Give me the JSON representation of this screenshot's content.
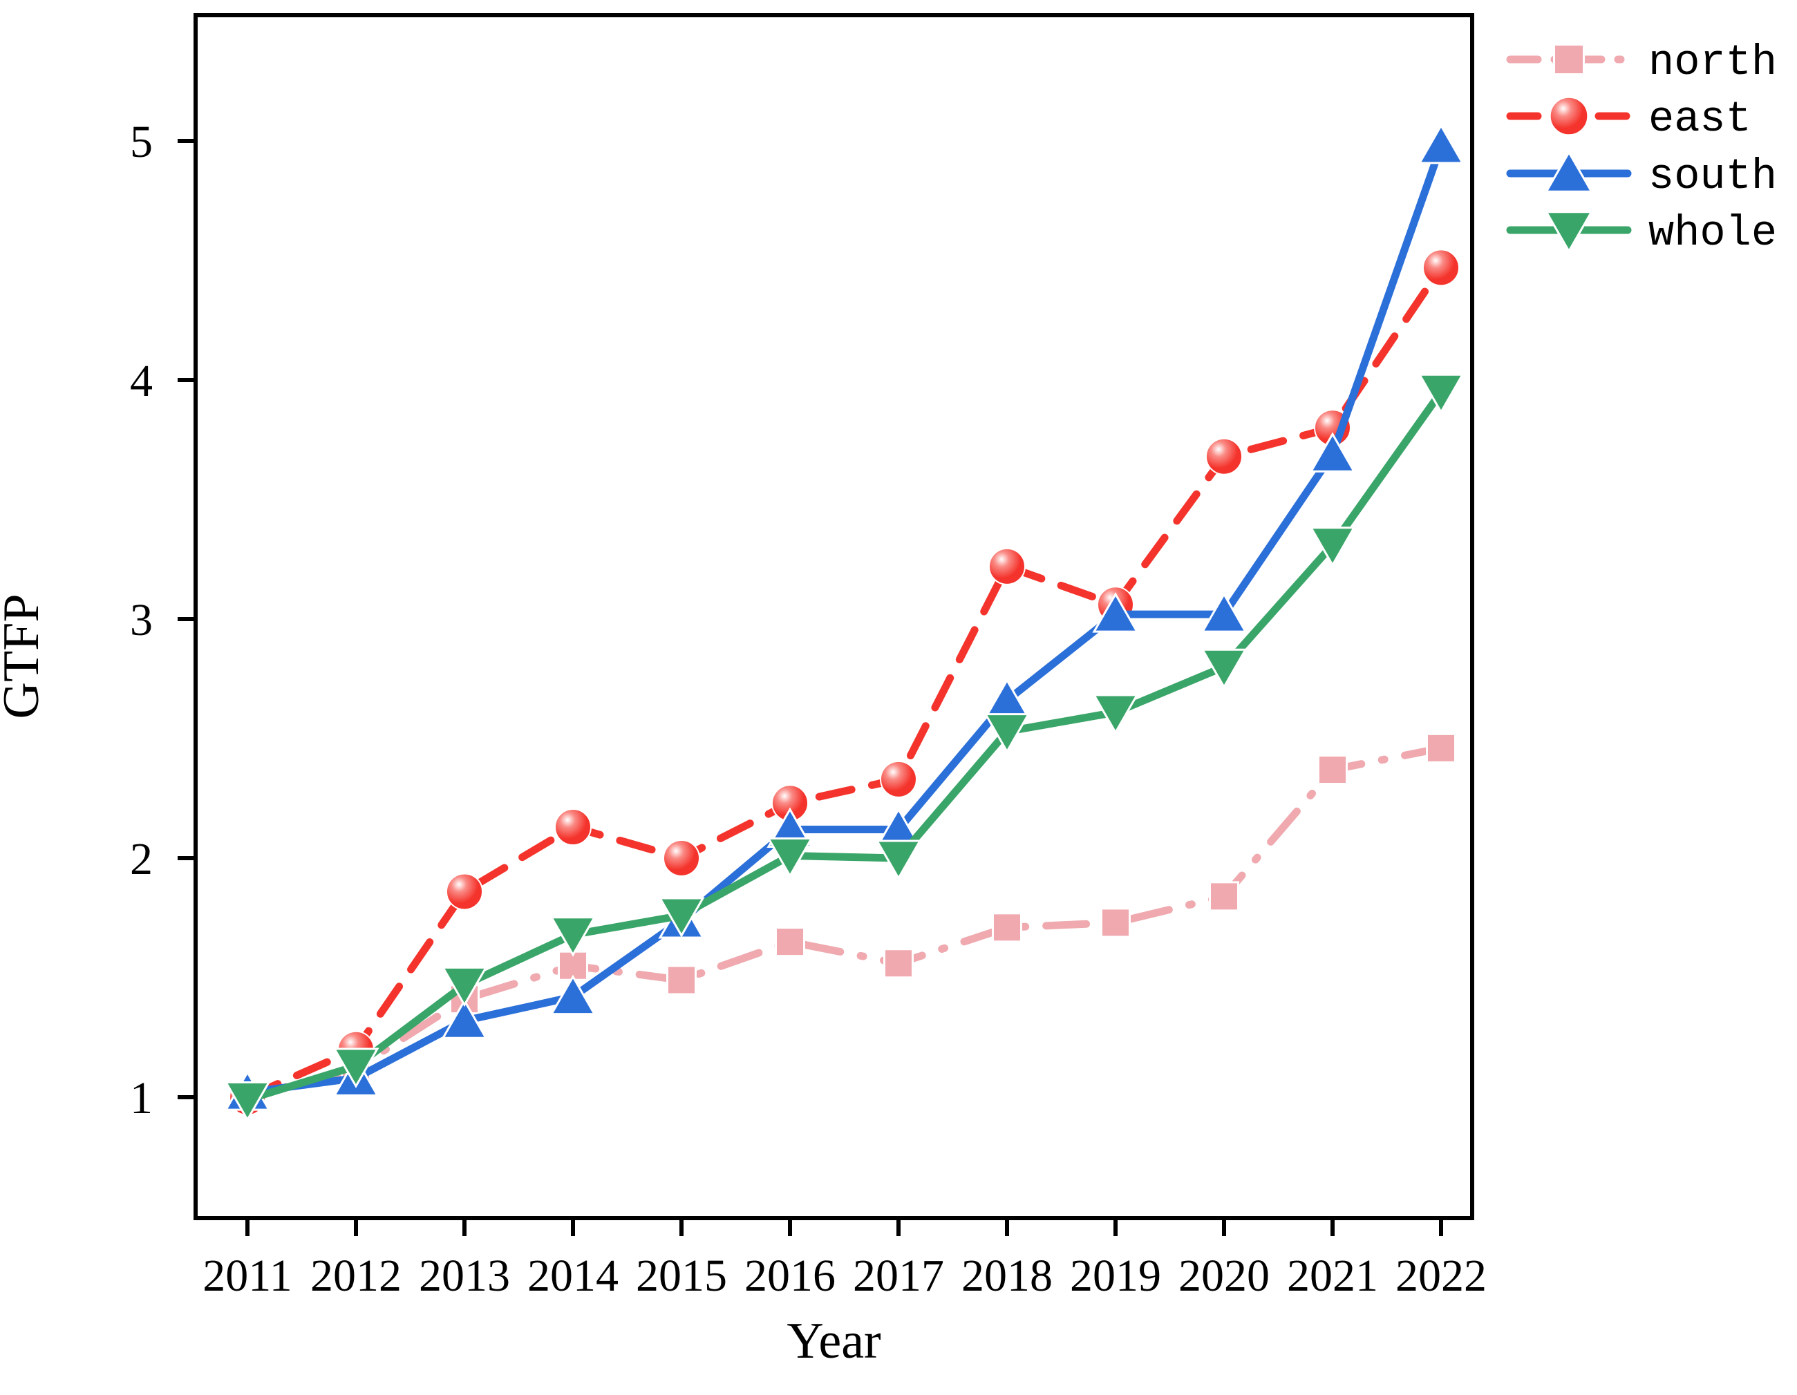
{
  "figure": {
    "background": "#ffffff",
    "border_color": "#000000"
  },
  "chart_data": {
    "type": "line",
    "title": "",
    "xlabel": "Year",
    "ylabel": "GTFP",
    "categories": [
      2011,
      2012,
      2013,
      2014,
      2015,
      2016,
      2017,
      2018,
      2019,
      2020,
      2021,
      2022
    ],
    "x_tick_labels": [
      "2011",
      "2012",
      "2013",
      "2014",
      "2015",
      "2016",
      "2017",
      "2018",
      "2019",
      "2020",
      "2021",
      "2022"
    ],
    "y_tick_labels": [
      "1",
      "2",
      "3",
      "4",
      "5"
    ],
    "yticks": [
      1,
      2,
      3,
      4,
      5
    ],
    "ylim": [
      0.49,
      5.53
    ],
    "grid": false,
    "legend_position": "outside-top-right",
    "series": [
      {
        "name": "north",
        "color": "#EFA9AF",
        "line_style": "dash-dot",
        "marker": "square",
        "values": [
          1.0,
          1.12,
          1.41,
          1.55,
          1.49,
          1.65,
          1.56,
          1.71,
          1.73,
          1.84,
          2.37,
          2.46
        ]
      },
      {
        "name": "east",
        "color": "#F4342C",
        "line_style": "dashed",
        "marker": "circle",
        "values": [
          1.0,
          1.2,
          1.86,
          2.13,
          2.0,
          2.23,
          2.33,
          3.22,
          3.06,
          3.68,
          3.8,
          4.47
        ]
      },
      {
        "name": "south",
        "color": "#2B6FD9",
        "line_style": "solid",
        "marker": "triangle-up",
        "values": [
          1.02,
          1.08,
          1.32,
          1.42,
          1.74,
          2.12,
          2.12,
          2.66,
          3.02,
          3.02,
          3.69,
          4.98
        ]
      },
      {
        "name": "whole",
        "color": "#3AA569",
        "line_style": "solid",
        "marker": "triangle-down",
        "values": [
          0.99,
          1.13,
          1.47,
          1.68,
          1.76,
          2.01,
          2.0,
          2.53,
          2.61,
          2.8,
          3.31,
          3.95
        ]
      }
    ]
  }
}
